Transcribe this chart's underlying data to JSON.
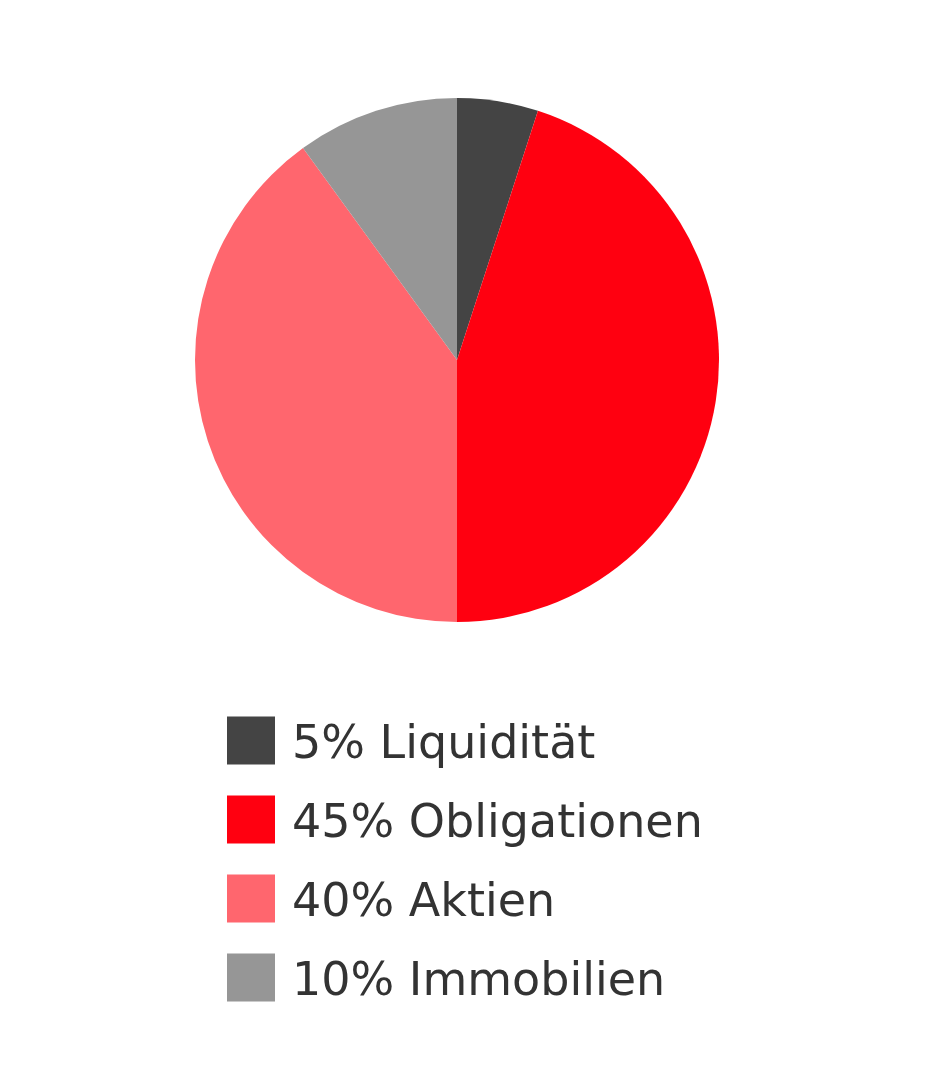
{
  "chart_data": {
    "type": "pie",
    "categories": [
      "Liquidität",
      "Obligationen",
      "Aktien",
      "Immobilien"
    ],
    "values": [
      5,
      45,
      40,
      10
    ],
    "value_labels": [
      "5%",
      "45%",
      "40%",
      "10%"
    ],
    "colors": [
      "#444444",
      "#ff0010",
      "#ff666e",
      "#969696"
    ],
    "legend": "bottom"
  }
}
